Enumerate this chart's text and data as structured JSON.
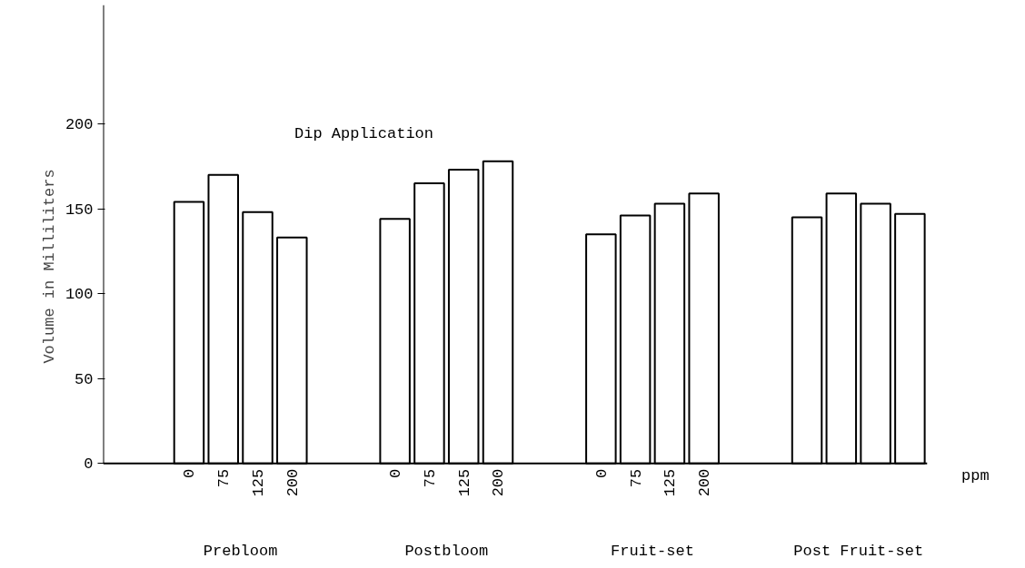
{
  "chart_data": {
    "type": "bar",
    "title": "Dip Application",
    "xlabel": "ppm",
    "ylabel": "Volume in Milliliters",
    "categories": [
      null,
      null,
      "0",
      "75",
      "125",
      "200",
      null,
      null,
      "0",
      "75",
      "125",
      "200",
      null,
      null,
      "0",
      "75",
      "125",
      "200",
      null,
      null,
      null,
      null,
      null,
      null
    ],
    "values": [
      null,
      null,
      154,
      170,
      148,
      133,
      null,
      null,
      144,
      165,
      173,
      178,
      null,
      null,
      135,
      146,
      153,
      159,
      null,
      null,
      145,
      159,
      153,
      147
    ],
    "color": "#ffffff",
    "ylim": [
      0,
      270
    ],
    "yticks": [
      0,
      50,
      100,
      150,
      200
    ],
    "annotations": [
      "Prebloom",
      "Postbloom",
      "Fruit-set",
      "Post Fruit-set"
    ]
  }
}
